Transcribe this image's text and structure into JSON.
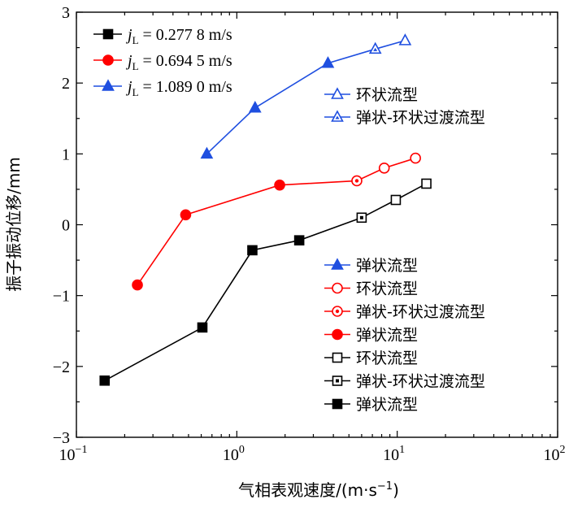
{
  "chart_data": {
    "type": "scatter",
    "xscale": "log",
    "xlim": [
      0.1,
      100
    ],
    "ylim": [
      -3,
      3
    ],
    "xlabel": "气相表观速度/(m·s",
    "xlabel_sup": "−1",
    "xlabel_end": ")",
    "ylabel": "振子振动位移/mm",
    "xticks": [
      {
        "value": 0.1,
        "base": "10",
        "exp": "−1"
      },
      {
        "value": 1,
        "base": "10",
        "exp": "0"
      },
      {
        "value": 10,
        "base": "10",
        "exp": "1"
      },
      {
        "value": 100,
        "base": "10",
        "exp": "2"
      }
    ],
    "yticks": [
      {
        "value": -3,
        "label": "−3"
      },
      {
        "value": -2,
        "label": "−2"
      },
      {
        "value": -1,
        "label": "−1"
      },
      {
        "value": 0,
        "label": "0"
      },
      {
        "value": 1,
        "label": "1"
      },
      {
        "value": 2,
        "label": "2"
      },
      {
        "value": 3,
        "label": "3"
      }
    ],
    "series": [
      {
        "name": "jL = 0.277 8 m/s",
        "var": "j",
        "sub": "L",
        "rest": " = 0.277 8 m/s",
        "color": "#000000",
        "marker": "square",
        "points": [
          {
            "x": 0.15,
            "y": -2.2,
            "regime": "slug"
          },
          {
            "x": 0.61,
            "y": -1.45,
            "regime": "slug"
          },
          {
            "x": 1.25,
            "y": -0.36,
            "regime": "slug"
          },
          {
            "x": 2.45,
            "y": -0.22,
            "regime": "slug"
          },
          {
            "x": 6.0,
            "y": 0.1,
            "regime": "transition"
          },
          {
            "x": 9.8,
            "y": 0.35,
            "regime": "annular"
          },
          {
            "x": 15.2,
            "y": 0.58,
            "regime": "annular"
          }
        ]
      },
      {
        "name": "jL = 0.694 5 m/s",
        "var": "j",
        "sub": "L",
        "rest": " = 0.694 5 m/s",
        "color": "#ff0000",
        "marker": "circle",
        "points": [
          {
            "x": 0.24,
            "y": -0.85,
            "regime": "slug"
          },
          {
            "x": 0.48,
            "y": 0.14,
            "regime": "slug"
          },
          {
            "x": 1.85,
            "y": 0.56,
            "regime": "slug"
          },
          {
            "x": 5.6,
            "y": 0.62,
            "regime": "transition"
          },
          {
            "x": 8.3,
            "y": 0.8,
            "regime": "annular"
          },
          {
            "x": 13.0,
            "y": 0.94,
            "regime": "annular"
          }
        ]
      },
      {
        "name": "jL = 1.089 0 m/s",
        "var": "j",
        "sub": "L",
        "rest": " = 1.089 0 m/s",
        "color": "#1f4fe0",
        "marker": "triangle",
        "points": [
          {
            "x": 0.65,
            "y": 1.0,
            "regime": "slug"
          },
          {
            "x": 1.3,
            "y": 1.65,
            "regime": "slug"
          },
          {
            "x": 3.7,
            "y": 2.28,
            "regime": "slug"
          },
          {
            "x": 7.3,
            "y": 2.48,
            "regime": "transition"
          },
          {
            "x": 11.2,
            "y": 2.6,
            "regime": "annular"
          }
        ]
      }
    ],
    "legend_top_right": [
      {
        "label": "环状流型",
        "series": 2,
        "regime": "annular"
      },
      {
        "label": "弹状-环状过渡流型",
        "series": 2,
        "regime": "transition"
      }
    ],
    "legend_bottom_right": [
      {
        "label": "弹状流型",
        "series": 2,
        "regime": "slug"
      },
      {
        "label": "环状流型",
        "series": 1,
        "regime": "annular"
      },
      {
        "label": "弹状-环状过渡流型",
        "series": 1,
        "regime": "transition"
      },
      {
        "label": "弹状流型",
        "series": 1,
        "regime": "slug"
      },
      {
        "label": "环状流型",
        "series": 0,
        "regime": "annular"
      },
      {
        "label": "弹状-环状过渡流型",
        "series": 0,
        "regime": "transition"
      },
      {
        "label": "弹状流型",
        "series": 0,
        "regime": "slug"
      }
    ]
  }
}
